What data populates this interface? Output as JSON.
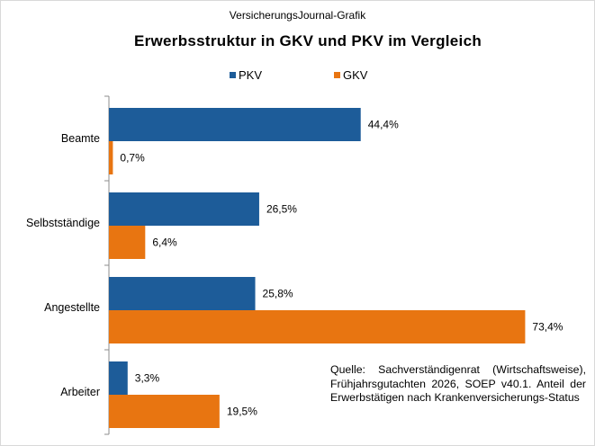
{
  "header": {
    "source": "VersicherungsJournal-Grafik",
    "title": "Erwerbsstruktur in GKV und PKV im Vergleich"
  },
  "note": "Quelle: Sachverständigenrat (Wirtschaftsweise), Frühjahrsgutachten 2026, SOEP v40.1. Anteil der Erwerbstätigen nach Krankenversicherungs-Status",
  "colors": {
    "pkv": "#1d5c99",
    "gkv": "#e87511",
    "axis": "#8c8c8c"
  },
  "chart_data": {
    "type": "bar",
    "orientation": "horizontal",
    "title": "Erwerbsstruktur in GKV und PKV im Vergleich",
    "categories": [
      "Beamte",
      "Selbstständige",
      "Angestellte",
      "Arbeiter"
    ],
    "series": [
      {
        "name": "PKV",
        "values": [
          44.4,
          26.5,
          25.8,
          3.3
        ],
        "labels": [
          "44,4%",
          "26,5%",
          "25,8%",
          "3,3%"
        ]
      },
      {
        "name": "GKV",
        "values": [
          0.7,
          6.4,
          73.4,
          19.5
        ],
        "labels": [
          "0,7%",
          "6,4%",
          "73,4%",
          "19,5%"
        ]
      }
    ],
    "xlim": [
      0,
      80
    ],
    "grid": false,
    "legend": "top-center",
    "data_labels": true
  }
}
